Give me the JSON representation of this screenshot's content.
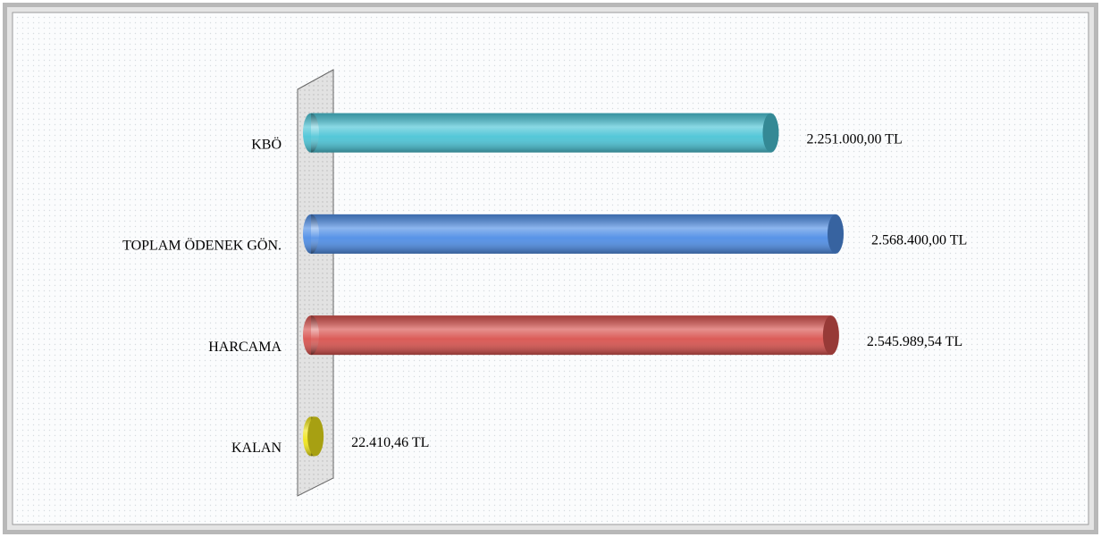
{
  "chart_data": {
    "type": "bar",
    "orientation": "horizontal",
    "categories": [
      "KBÖ",
      "TOPLAM ÖDENEK GÖN.",
      "HARCAMA",
      "KALAN"
    ],
    "values": [
      2251000,
      2568400,
      2545989.54,
      22410.46
    ],
    "value_labels": [
      "2.251.000,00 TL",
      "2.568.400,00 TL",
      "2.545.989,54 TL",
      "22.410,46 TL"
    ],
    "colors": [
      "#4bc4d6",
      "#4f8ee6",
      "#d9534f",
      "#f0e51a"
    ]
  }
}
